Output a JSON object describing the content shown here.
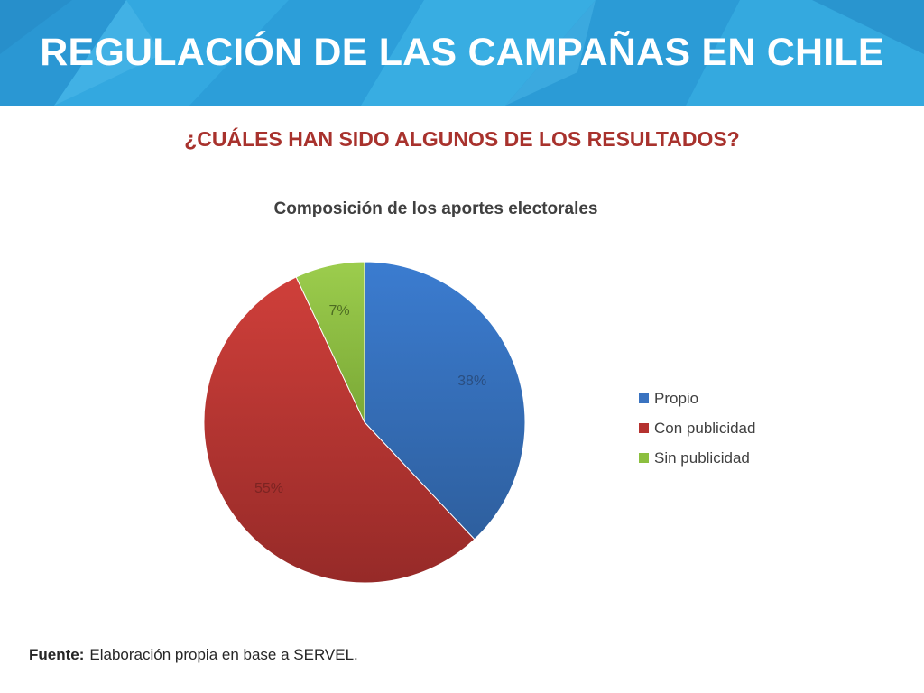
{
  "slide": {
    "title": "REGULACIÓN DE LAS CAMPAÑAS EN CHILE",
    "subtitle": "¿CUÁLES HAN SIDO ALGUNOS DE LOS RESULTADOS?",
    "source_label": "Fuente:",
    "source_text": "Elaboración propia en base a SERVEL."
  },
  "colors": {
    "banner": "#2fa3dc",
    "subtitle": "#a8322d"
  },
  "chart_data": {
    "type": "pie",
    "title": "Composición de los aportes electorales",
    "legend_position": "right",
    "slices": [
      {
        "name": "Propio",
        "value": 38,
        "label": "38%",
        "color": "#3a73c0",
        "label_color": "#2a4e80"
      },
      {
        "name": "Con publicidad",
        "value": 55,
        "label": "55%",
        "color": "#b5322f",
        "label_color": "#7c2422"
      },
      {
        "name": "Sin publicidad",
        "value": 7,
        "label": "7%",
        "color": "#8cbf3f",
        "label_color": "#4d6b22"
      }
    ]
  }
}
